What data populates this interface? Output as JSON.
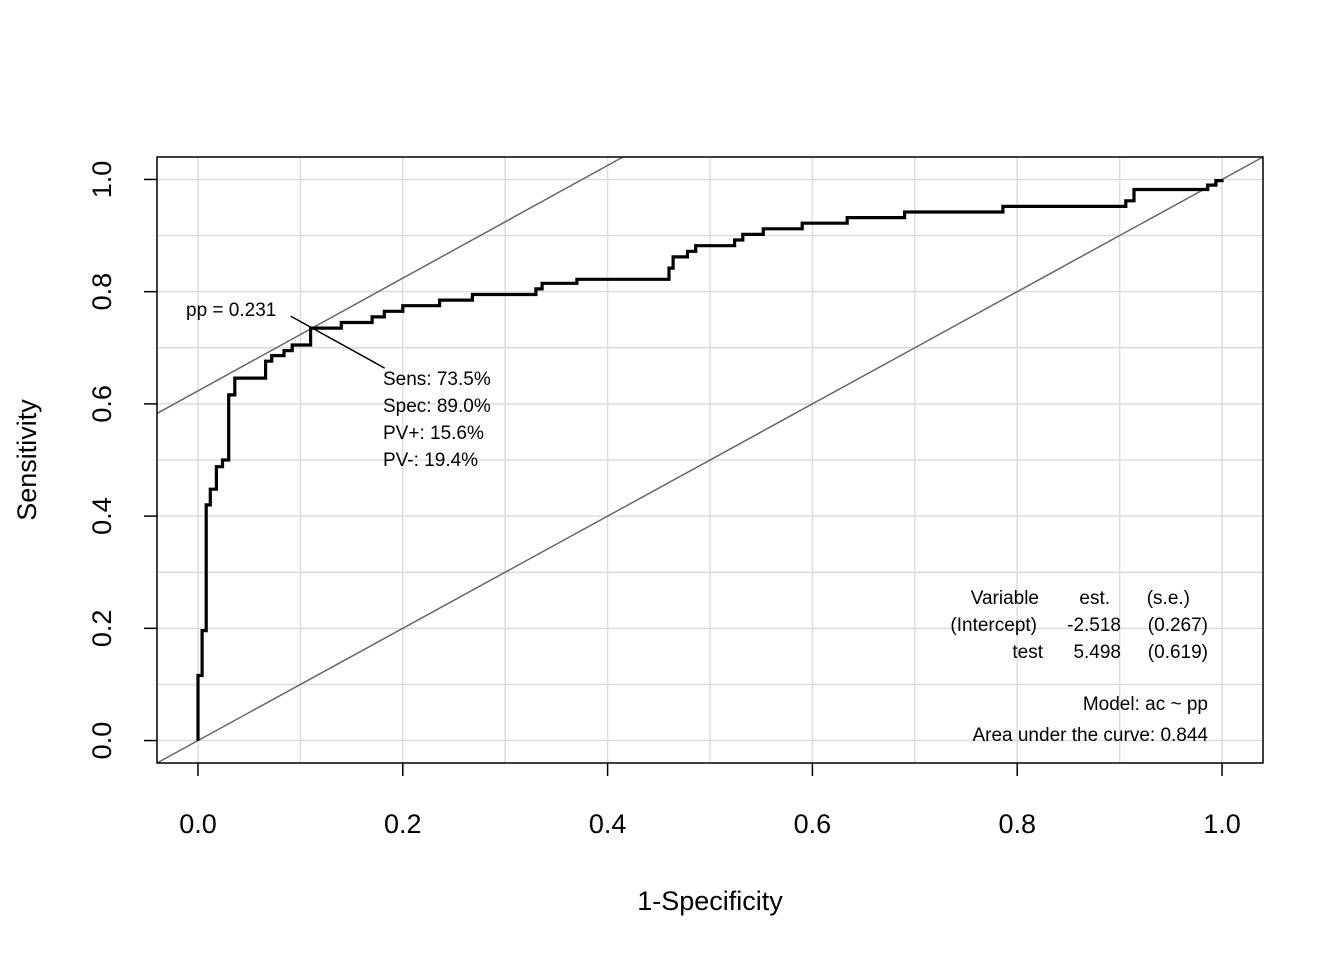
{
  "chart_data": {
    "type": "line",
    "xlabel": "1-Specificity",
    "ylabel": "Sensitivity",
    "xlim": [
      -0.04,
      1.04
    ],
    "ylim": [
      -0.04,
      1.04
    ],
    "x_ticks": [
      "0.0",
      "0.2",
      "0.4",
      "0.6",
      "0.8",
      "1.0"
    ],
    "y_ticks": [
      "0.0",
      "0.2",
      "0.4",
      "0.6",
      "0.8",
      "1.0"
    ],
    "x_tick_values": [
      0,
      0.2,
      0.4,
      0.6,
      0.8,
      1.0
    ],
    "y_tick_values": [
      0,
      0.2,
      0.4,
      0.6,
      0.8,
      1.0
    ],
    "grid_values": [
      0,
      0.1,
      0.2,
      0.3,
      0.4,
      0.5,
      0.6,
      0.7,
      0.8,
      0.9,
      1.0
    ],
    "grid": true,
    "series": [
      {
        "color": "#000000",
        "x": [
          0.0,
          0.0,
          0.004,
          0.004,
          0.008,
          0.008,
          0.012,
          0.012,
          0.018,
          0.018,
          0.024,
          0.024,
          0.03,
          0.03,
          0.036,
          0.036,
          0.042,
          0.042,
          0.066,
          0.066,
          0.072,
          0.072,
          0.084,
          0.084,
          0.092,
          0.092,
          0.11,
          0.11,
          0.14,
          0.14,
          0.17,
          0.17,
          0.182,
          0.182,
          0.2,
          0.2,
          0.236,
          0.236,
          0.268,
          0.268,
          0.33,
          0.33,
          0.336,
          0.336,
          0.37,
          0.37,
          0.45,
          0.45,
          0.46,
          0.46,
          0.464,
          0.464,
          0.478,
          0.478,
          0.486,
          0.486,
          0.524,
          0.524,
          0.532,
          0.532,
          0.552,
          0.552,
          0.59,
          0.59,
          0.6,
          0.6,
          0.634,
          0.634,
          0.69,
          0.69,
          0.786,
          0.786,
          0.906,
          0.906,
          0.914,
          0.914,
          0.976,
          0.976,
          0.986,
          0.986,
          0.994,
          0.994,
          1.0,
          1.0
        ],
        "y": [
          0.0,
          0.116,
          0.116,
          0.196,
          0.196,
          0.42,
          0.42,
          0.448,
          0.448,
          0.488,
          0.488,
          0.5,
          0.5,
          0.616,
          0.616,
          0.646,
          0.646,
          0.646,
          0.646,
          0.676,
          0.676,
          0.686,
          0.686,
          0.695,
          0.695,
          0.705,
          0.705,
          0.735,
          0.735,
          0.745,
          0.745,
          0.755,
          0.755,
          0.765,
          0.765,
          0.775,
          0.775,
          0.785,
          0.785,
          0.795,
          0.795,
          0.805,
          0.805,
          0.815,
          0.815,
          0.822,
          0.822,
          0.822,
          0.822,
          0.842,
          0.842,
          0.862,
          0.862,
          0.872,
          0.872,
          0.882,
          0.882,
          0.892,
          0.892,
          0.902,
          0.902,
          0.912,
          0.912,
          0.922,
          0.922,
          0.922,
          0.922,
          0.932,
          0.932,
          0.942,
          0.942,
          0.952,
          0.952,
          0.962,
          0.962,
          0.982,
          0.982,
          0.982,
          0.982,
          0.99,
          0.99,
          0.998,
          0.998,
          1.0
        ]
      }
    ],
    "reference_lines": [
      {
        "kind": "diagonal",
        "x": [
          -0.04,
          1.04
        ],
        "y": [
          -0.04,
          1.04
        ],
        "color": "#666666"
      },
      {
        "kind": "iso-accuracy",
        "x": [
          -0.04,
          0.415
        ],
        "y": [
          0.583,
          1.04
        ],
        "color": "#666666"
      }
    ],
    "annotations": {
      "cutoff_label": "pp = 0.231",
      "cutoff_point": [
        0.112,
        0.735
      ],
      "stats": [
        "Sens: 73.5%",
        "Spec: 89.0%",
        "PV+: 15.6%",
        "PV-: 19.4%"
      ],
      "table_header": [
        "Variable",
        "est.",
        "(s.e.)"
      ],
      "table_rows": [
        [
          "(Intercept)",
          "-2.518",
          "(0.267)"
        ],
        [
          "test",
          "5.498",
          "(0.619)"
        ]
      ],
      "model_label": "Model:  ac ~ pp",
      "auc_label": "Area under the curve: 0.844"
    }
  }
}
